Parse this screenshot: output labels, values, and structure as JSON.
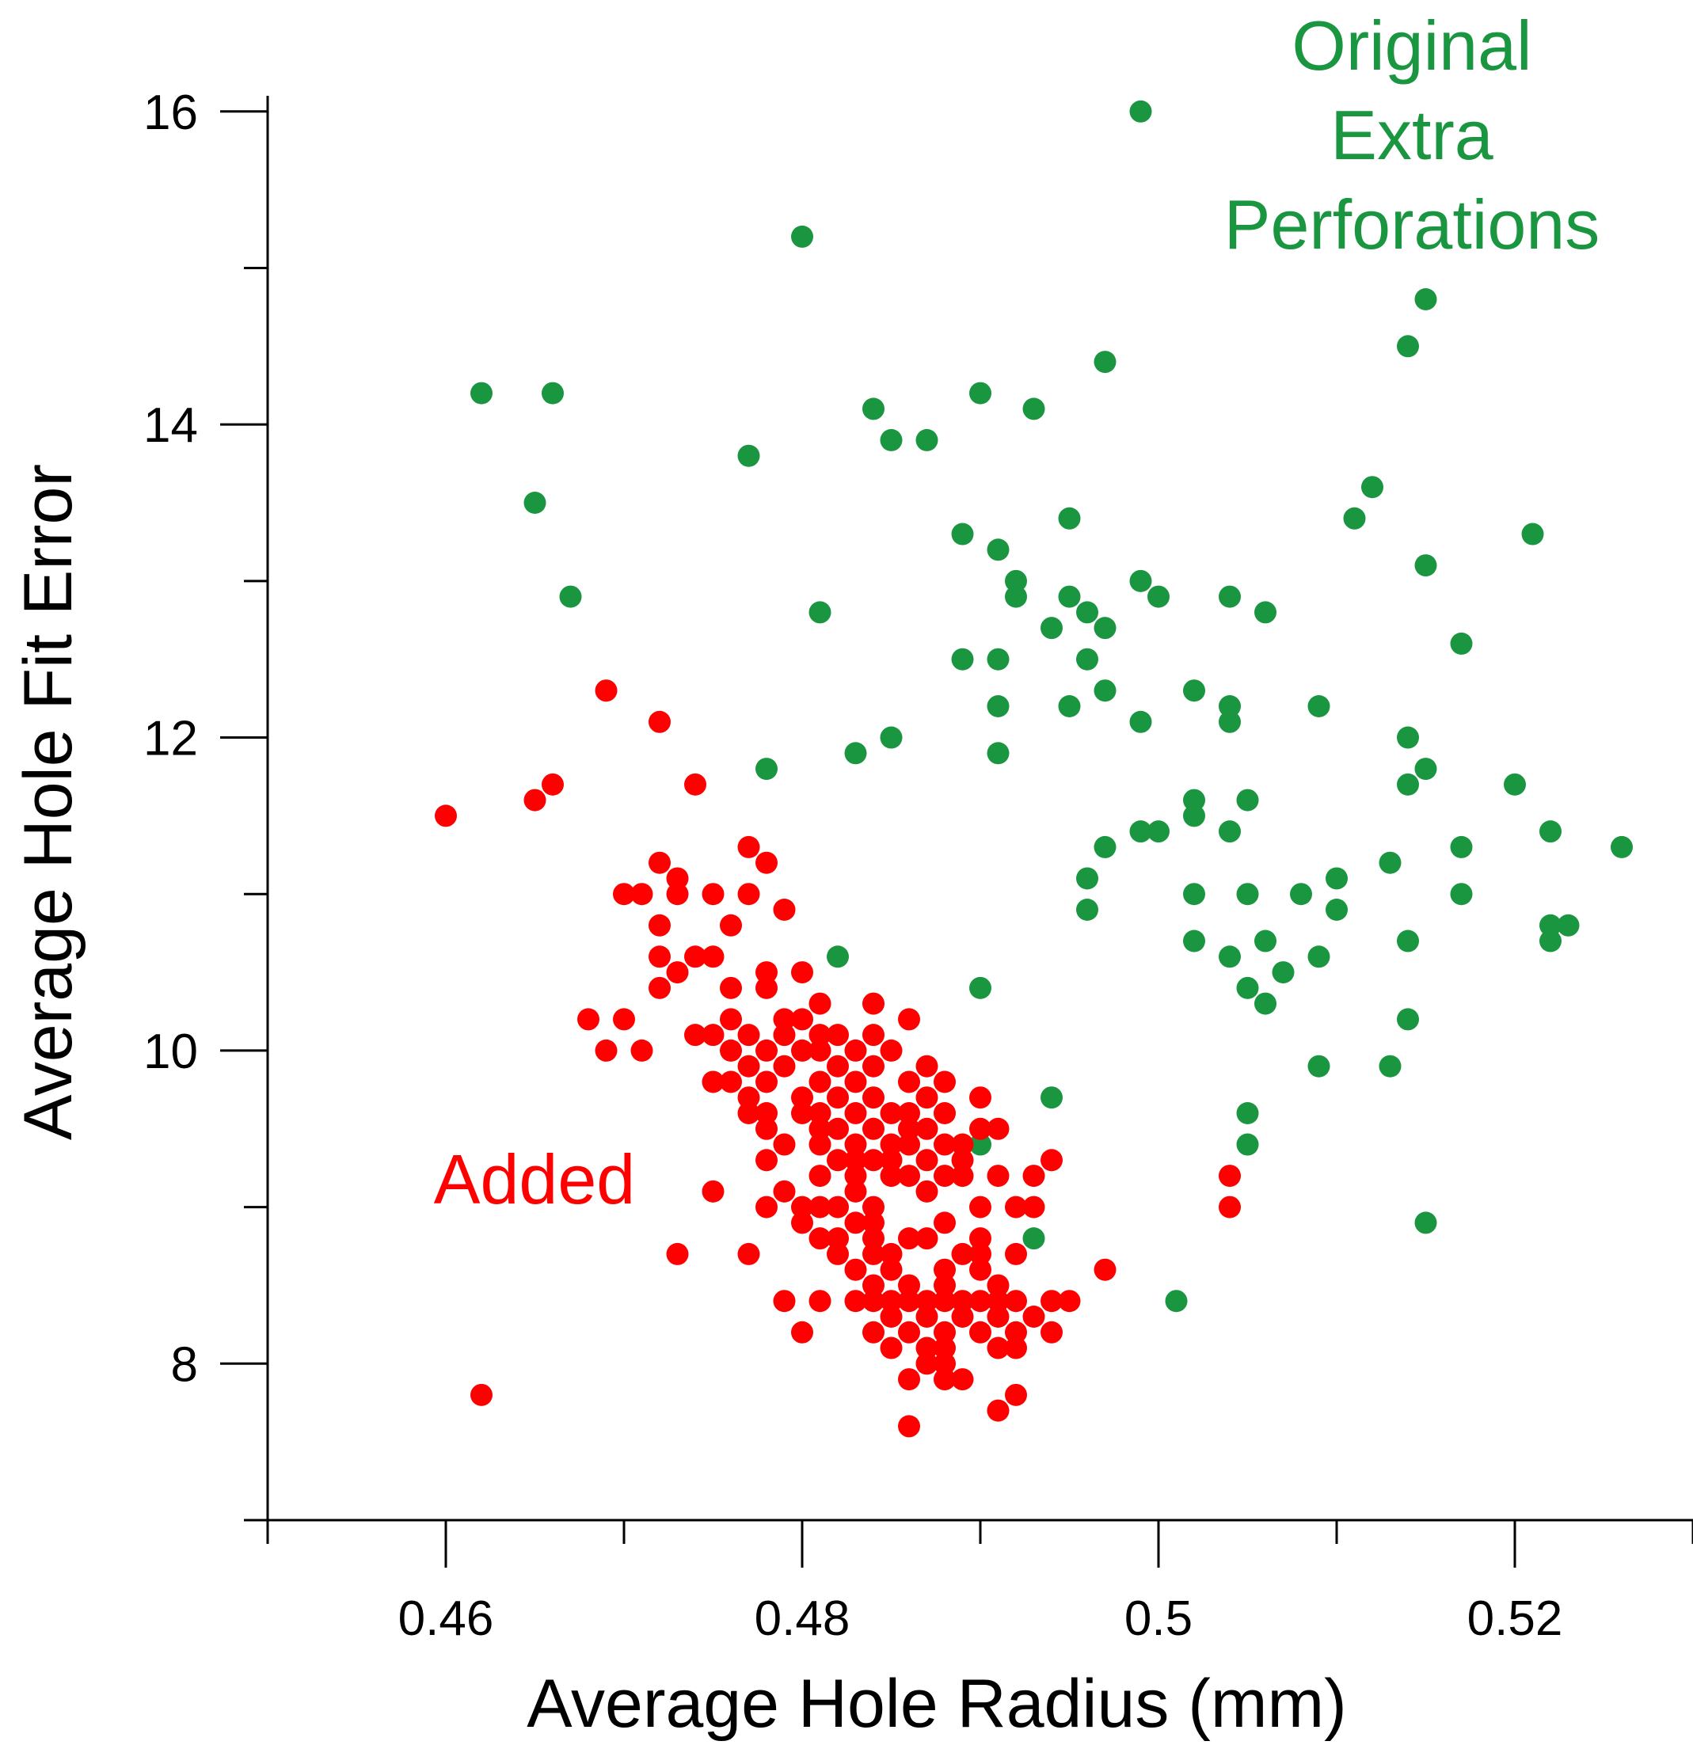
{
  "chart_data": {
    "type": "scatter",
    "title": "",
    "xlabel": "Average Hole Radius (mm)",
    "ylabel": "Average Hole Fit Error",
    "xlim": [
      0.45,
      0.53
    ],
    "ylim": [
      7,
      16.1
    ],
    "x_major_ticks": [
      0.46,
      0.48,
      0.5,
      0.52
    ],
    "x_tick_labels": [
      "0.46",
      "0.48",
      "0.5",
      "0.52"
    ],
    "x_minor_ticks": [
      0.45,
      0.47,
      0.49,
      0.51,
      0.53
    ],
    "y_major_ticks": [
      8,
      10,
      12,
      14,
      16
    ],
    "y_tick_labels": [
      "8",
      "10",
      "12",
      "14",
      "16"
    ],
    "y_minor_ticks": [
      7,
      9,
      11,
      13,
      15
    ],
    "grid": false,
    "annotations": [
      {
        "series": "original",
        "lines": [
          "Original",
          "Extra",
          "Perforations"
        ],
        "color": "#1a9641"
      },
      {
        "series": "added",
        "lines": [
          "Added"
        ],
        "color": "#ff0000"
      }
    ],
    "series": [
      {
        "name": "Original Extra Perforations",
        "color": "#1a9641",
        "points": [
          [
            0.499,
            16.0
          ],
          [
            0.48,
            15.2
          ],
          [
            0.515,
            14.8
          ],
          [
            0.514,
            14.5
          ],
          [
            0.497,
            14.4
          ],
          [
            0.462,
            14.2
          ],
          [
            0.466,
            14.2
          ],
          [
            0.49,
            14.2
          ],
          [
            0.484,
            14.1
          ],
          [
            0.493,
            14.1
          ],
          [
            0.485,
            13.9
          ],
          [
            0.487,
            13.9
          ],
          [
            0.477,
            13.8
          ],
          [
            0.512,
            13.6
          ],
          [
            0.465,
            13.5
          ],
          [
            0.495,
            13.4
          ],
          [
            0.511,
            13.4
          ],
          [
            0.489,
            13.3
          ],
          [
            0.521,
            13.3
          ],
          [
            0.491,
            13.2
          ],
          [
            0.515,
            13.1
          ],
          [
            0.492,
            13.0
          ],
          [
            0.499,
            13.0
          ],
          [
            0.467,
            12.9
          ],
          [
            0.492,
            12.9
          ],
          [
            0.495,
            12.9
          ],
          [
            0.5,
            12.9
          ],
          [
            0.504,
            12.9
          ],
          [
            0.481,
            12.8
          ],
          [
            0.496,
            12.8
          ],
          [
            0.506,
            12.8
          ],
          [
            0.494,
            12.7
          ],
          [
            0.497,
            12.7
          ],
          [
            0.517,
            12.6
          ],
          [
            0.489,
            12.5
          ],
          [
            0.491,
            12.5
          ],
          [
            0.496,
            12.5
          ],
          [
            0.497,
            12.3
          ],
          [
            0.502,
            12.3
          ],
          [
            0.491,
            12.2
          ],
          [
            0.495,
            12.2
          ],
          [
            0.504,
            12.2
          ],
          [
            0.509,
            12.2
          ],
          [
            0.499,
            12.1
          ],
          [
            0.504,
            12.1
          ],
          [
            0.485,
            12.0
          ],
          [
            0.514,
            12.0
          ],
          [
            0.483,
            11.9
          ],
          [
            0.491,
            11.9
          ],
          [
            0.478,
            11.8
          ],
          [
            0.515,
            11.8
          ],
          [
            0.514,
            11.7
          ],
          [
            0.52,
            11.7
          ],
          [
            0.502,
            11.6
          ],
          [
            0.505,
            11.6
          ],
          [
            0.502,
            11.5
          ],
          [
            0.499,
            11.4
          ],
          [
            0.5,
            11.4
          ],
          [
            0.504,
            11.4
          ],
          [
            0.522,
            11.4
          ],
          [
            0.497,
            11.3
          ],
          [
            0.517,
            11.3
          ],
          [
            0.526,
            11.3
          ],
          [
            0.513,
            11.2
          ],
          [
            0.496,
            11.1
          ],
          [
            0.51,
            11.1
          ],
          [
            0.502,
            11.0
          ],
          [
            0.505,
            11.0
          ],
          [
            0.508,
            11.0
          ],
          [
            0.517,
            11.0
          ],
          [
            0.496,
            10.9
          ],
          [
            0.51,
            10.9
          ],
          [
            0.522,
            10.8
          ],
          [
            0.523,
            10.8
          ],
          [
            0.502,
            10.7
          ],
          [
            0.506,
            10.7
          ],
          [
            0.514,
            10.7
          ],
          [
            0.522,
            10.7
          ],
          [
            0.482,
            10.6
          ],
          [
            0.504,
            10.6
          ],
          [
            0.509,
            10.6
          ],
          [
            0.507,
            10.5
          ],
          [
            0.49,
            10.4
          ],
          [
            0.505,
            10.4
          ],
          [
            0.506,
            10.3
          ],
          [
            0.514,
            10.2
          ],
          [
            0.509,
            9.9
          ],
          [
            0.513,
            9.9
          ],
          [
            0.494,
            9.7
          ],
          [
            0.505,
            9.6
          ],
          [
            0.49,
            9.4
          ],
          [
            0.505,
            9.4
          ],
          [
            0.493,
            8.8
          ],
          [
            0.515,
            8.9
          ],
          [
            0.501,
            8.4
          ]
        ]
      },
      {
        "name": "Added",
        "color": "#ff0000",
        "points": [
          [
            0.469,
            12.3
          ],
          [
            0.472,
            12.1
          ],
          [
            0.466,
            11.7
          ],
          [
            0.474,
            11.7
          ],
          [
            0.465,
            11.6
          ],
          [
            0.46,
            11.5
          ],
          [
            0.477,
            11.3
          ],
          [
            0.472,
            11.2
          ],
          [
            0.478,
            11.2
          ],
          [
            0.473,
            11.1
          ],
          [
            0.47,
            11.0
          ],
          [
            0.471,
            11.0
          ],
          [
            0.473,
            11.0
          ],
          [
            0.475,
            11.0
          ],
          [
            0.477,
            11.0
          ],
          [
            0.479,
            10.9
          ],
          [
            0.472,
            10.8
          ],
          [
            0.476,
            10.8
          ],
          [
            0.472,
            10.6
          ],
          [
            0.474,
            10.6
          ],
          [
            0.475,
            10.6
          ],
          [
            0.473,
            10.5
          ],
          [
            0.478,
            10.5
          ],
          [
            0.48,
            10.5
          ],
          [
            0.472,
            10.4
          ],
          [
            0.476,
            10.4
          ],
          [
            0.478,
            10.4
          ],
          [
            0.481,
            10.3
          ],
          [
            0.484,
            10.3
          ],
          [
            0.468,
            10.2
          ],
          [
            0.47,
            10.2
          ],
          [
            0.476,
            10.2
          ],
          [
            0.479,
            10.2
          ],
          [
            0.48,
            10.2
          ],
          [
            0.486,
            10.2
          ],
          [
            0.474,
            10.1
          ],
          [
            0.475,
            10.1
          ],
          [
            0.477,
            10.1
          ],
          [
            0.479,
            10.1
          ],
          [
            0.481,
            10.1
          ],
          [
            0.482,
            10.1
          ],
          [
            0.484,
            10.1
          ],
          [
            0.469,
            10.0
          ],
          [
            0.471,
            10.0
          ],
          [
            0.476,
            10.0
          ],
          [
            0.478,
            10.0
          ],
          [
            0.48,
            10.0
          ],
          [
            0.481,
            10.0
          ],
          [
            0.483,
            10.0
          ],
          [
            0.485,
            10.0
          ],
          [
            0.477,
            9.9
          ],
          [
            0.479,
            9.9
          ],
          [
            0.482,
            9.9
          ],
          [
            0.484,
            9.9
          ],
          [
            0.487,
            9.9
          ],
          [
            0.475,
            9.8
          ],
          [
            0.476,
            9.8
          ],
          [
            0.478,
            9.8
          ],
          [
            0.481,
            9.8
          ],
          [
            0.483,
            9.8
          ],
          [
            0.486,
            9.8
          ],
          [
            0.488,
            9.8
          ],
          [
            0.477,
            9.7
          ],
          [
            0.48,
            9.7
          ],
          [
            0.482,
            9.7
          ],
          [
            0.484,
            9.7
          ],
          [
            0.487,
            9.7
          ],
          [
            0.49,
            9.7
          ],
          [
            0.477,
            9.6
          ],
          [
            0.478,
            9.6
          ],
          [
            0.48,
            9.6
          ],
          [
            0.481,
            9.6
          ],
          [
            0.483,
            9.6
          ],
          [
            0.485,
            9.6
          ],
          [
            0.486,
            9.6
          ],
          [
            0.488,
            9.6
          ],
          [
            0.478,
            9.5
          ],
          [
            0.481,
            9.5
          ],
          [
            0.482,
            9.5
          ],
          [
            0.484,
            9.5
          ],
          [
            0.486,
            9.5
          ],
          [
            0.487,
            9.5
          ],
          [
            0.49,
            9.5
          ],
          [
            0.491,
            9.5
          ],
          [
            0.479,
            9.4
          ],
          [
            0.481,
            9.4
          ],
          [
            0.483,
            9.4
          ],
          [
            0.485,
            9.4
          ],
          [
            0.486,
            9.4
          ],
          [
            0.488,
            9.4
          ],
          [
            0.489,
            9.4
          ],
          [
            0.478,
            9.3
          ],
          [
            0.482,
            9.3
          ],
          [
            0.483,
            9.3
          ],
          [
            0.484,
            9.3
          ],
          [
            0.485,
            9.3
          ],
          [
            0.487,
            9.3
          ],
          [
            0.489,
            9.3
          ],
          [
            0.494,
            9.3
          ],
          [
            0.481,
            9.2
          ],
          [
            0.483,
            9.2
          ],
          [
            0.485,
            9.2
          ],
          [
            0.486,
            9.2
          ],
          [
            0.488,
            9.2
          ],
          [
            0.489,
            9.2
          ],
          [
            0.491,
            9.2
          ],
          [
            0.493,
            9.2
          ],
          [
            0.504,
            9.2
          ],
          [
            0.475,
            9.1
          ],
          [
            0.479,
            9.1
          ],
          [
            0.483,
            9.1
          ],
          [
            0.487,
            9.1
          ],
          [
            0.478,
            9.0
          ],
          [
            0.48,
            9.0
          ],
          [
            0.481,
            9.0
          ],
          [
            0.482,
            9.0
          ],
          [
            0.484,
            9.0
          ],
          [
            0.49,
            9.0
          ],
          [
            0.492,
            9.0
          ],
          [
            0.493,
            9.0
          ],
          [
            0.504,
            9.0
          ],
          [
            0.48,
            8.9
          ],
          [
            0.483,
            8.9
          ],
          [
            0.484,
            8.9
          ],
          [
            0.488,
            8.9
          ],
          [
            0.481,
            8.8
          ],
          [
            0.482,
            8.8
          ],
          [
            0.484,
            8.8
          ],
          [
            0.486,
            8.8
          ],
          [
            0.487,
            8.8
          ],
          [
            0.49,
            8.8
          ],
          [
            0.473,
            8.7
          ],
          [
            0.477,
            8.7
          ],
          [
            0.482,
            8.7
          ],
          [
            0.484,
            8.7
          ],
          [
            0.485,
            8.7
          ],
          [
            0.489,
            8.7
          ],
          [
            0.49,
            8.7
          ],
          [
            0.492,
            8.7
          ],
          [
            0.483,
            8.6
          ],
          [
            0.485,
            8.6
          ],
          [
            0.488,
            8.6
          ],
          [
            0.49,
            8.6
          ],
          [
            0.497,
            8.6
          ],
          [
            0.484,
            8.5
          ],
          [
            0.486,
            8.5
          ],
          [
            0.488,
            8.5
          ],
          [
            0.491,
            8.5
          ],
          [
            0.479,
            8.4
          ],
          [
            0.481,
            8.4
          ],
          [
            0.483,
            8.4
          ],
          [
            0.484,
            8.4
          ],
          [
            0.485,
            8.4
          ],
          [
            0.486,
            8.4
          ],
          [
            0.487,
            8.4
          ],
          [
            0.488,
            8.4
          ],
          [
            0.489,
            8.4
          ],
          [
            0.49,
            8.4
          ],
          [
            0.491,
            8.4
          ],
          [
            0.492,
            8.4
          ],
          [
            0.494,
            8.4
          ],
          [
            0.495,
            8.4
          ],
          [
            0.485,
            8.3
          ],
          [
            0.487,
            8.3
          ],
          [
            0.489,
            8.3
          ],
          [
            0.491,
            8.3
          ],
          [
            0.493,
            8.3
          ],
          [
            0.48,
            8.2
          ],
          [
            0.484,
            8.2
          ],
          [
            0.486,
            8.2
          ],
          [
            0.488,
            8.2
          ],
          [
            0.49,
            8.2
          ],
          [
            0.492,
            8.2
          ],
          [
            0.494,
            8.2
          ],
          [
            0.485,
            8.1
          ],
          [
            0.487,
            8.1
          ],
          [
            0.488,
            8.1
          ],
          [
            0.491,
            8.1
          ],
          [
            0.492,
            8.1
          ],
          [
            0.487,
            8.0
          ],
          [
            0.488,
            8.0
          ],
          [
            0.486,
            7.9
          ],
          [
            0.488,
            7.9
          ],
          [
            0.489,
            7.9
          ],
          [
            0.462,
            7.8
          ],
          [
            0.492,
            7.8
          ],
          [
            0.491,
            7.7
          ],
          [
            0.486,
            7.6
          ]
        ]
      }
    ]
  }
}
